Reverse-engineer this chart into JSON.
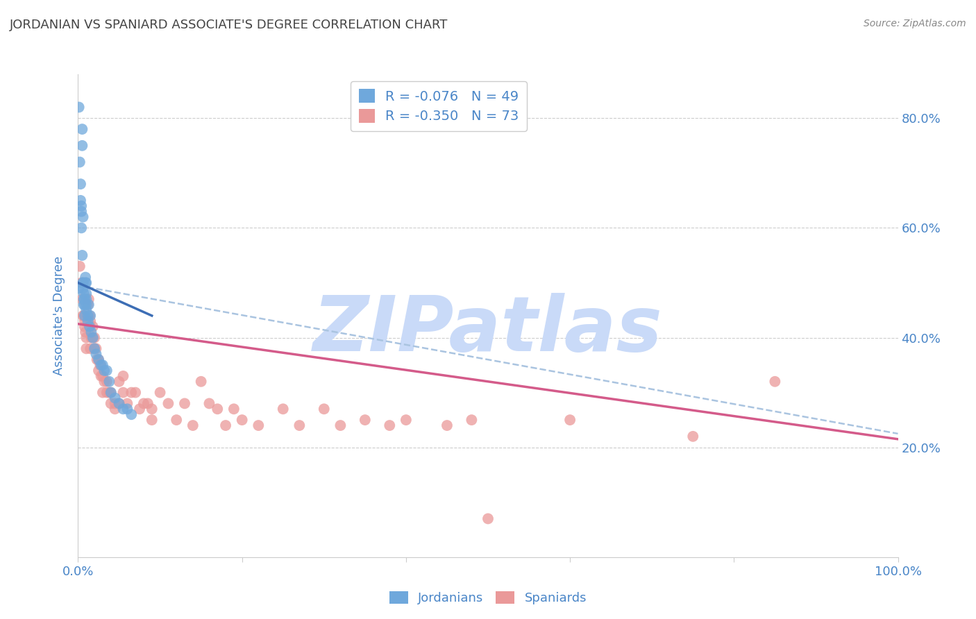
{
  "title": "JORDANIAN VS SPANIARD ASSOCIATE'S DEGREE CORRELATION CHART",
  "source": "Source: ZipAtlas.com",
  "ylabel": "Associate's Degree",
  "xlim": [
    0.0,
    1.0
  ],
  "ylim": [
    0.0,
    0.88
  ],
  "y_tick_right": [
    0.2,
    0.4,
    0.6,
    0.8
  ],
  "y_tick_right_labels": [
    "20.0%",
    "40.0%",
    "60.0%",
    "80.0%"
  ],
  "legend_blue_r": "-0.076",
  "legend_blue_n": "49",
  "legend_pink_r": "-0.350",
  "legend_pink_n": "73",
  "blue_color": "#6fa8dc",
  "pink_color": "#ea9999",
  "blue_line_color": "#3d6eb5",
  "pink_line_color": "#d45b8a",
  "dashed_line_color": "#aac4e0",
  "watermark_text": "ZIPatlas",
  "watermark_color": "#c9daf8",
  "title_color": "#444444",
  "tick_label_color": "#4a86c8",
  "source_color": "#888888",
  "jordanians_x": [
    0.001,
    0.001,
    0.002,
    0.003,
    0.003,
    0.004,
    0.004,
    0.004,
    0.005,
    0.005,
    0.005,
    0.006,
    0.006,
    0.006,
    0.006,
    0.007,
    0.007,
    0.007,
    0.008,
    0.008,
    0.008,
    0.009,
    0.009,
    0.01,
    0.01,
    0.01,
    0.01,
    0.01,
    0.012,
    0.012,
    0.013,
    0.014,
    0.015,
    0.016,
    0.018,
    0.02,
    0.022,
    0.025,
    0.028,
    0.03,
    0.032,
    0.035,
    0.038,
    0.04,
    0.045,
    0.05,
    0.055,
    0.06,
    0.065
  ],
  "jordanians_y": [
    0.82,
    0.49,
    0.72,
    0.68,
    0.65,
    0.64,
    0.63,
    0.6,
    0.78,
    0.75,
    0.55,
    0.62,
    0.5,
    0.5,
    0.49,
    0.48,
    0.47,
    0.46,
    0.47,
    0.46,
    0.44,
    0.51,
    0.5,
    0.5,
    0.48,
    0.47,
    0.46,
    0.45,
    0.44,
    0.43,
    0.46,
    0.42,
    0.44,
    0.41,
    0.4,
    0.38,
    0.37,
    0.36,
    0.35,
    0.35,
    0.34,
    0.34,
    0.32,
    0.3,
    0.29,
    0.28,
    0.27,
    0.27,
    0.26
  ],
  "spaniards_x": [
    0.002,
    0.004,
    0.005,
    0.006,
    0.007,
    0.008,
    0.008,
    0.009,
    0.01,
    0.01,
    0.012,
    0.013,
    0.014,
    0.015,
    0.015,
    0.016,
    0.018,
    0.018,
    0.02,
    0.02,
    0.022,
    0.023,
    0.025,
    0.025,
    0.027,
    0.028,
    0.03,
    0.03,
    0.032,
    0.035,
    0.035,
    0.038,
    0.04,
    0.04,
    0.045,
    0.045,
    0.05,
    0.05,
    0.055,
    0.055,
    0.06,
    0.065,
    0.07,
    0.075,
    0.08,
    0.085,
    0.09,
    0.09,
    0.1,
    0.11,
    0.12,
    0.13,
    0.14,
    0.15,
    0.16,
    0.17,
    0.18,
    0.19,
    0.2,
    0.22,
    0.25,
    0.27,
    0.3,
    0.32,
    0.35,
    0.38,
    0.4,
    0.45,
    0.48,
    0.5,
    0.6,
    0.75,
    0.85
  ],
  "spaniards_y": [
    0.53,
    0.5,
    0.47,
    0.44,
    0.44,
    0.43,
    0.42,
    0.41,
    0.4,
    0.38,
    0.46,
    0.47,
    0.44,
    0.43,
    0.38,
    0.4,
    0.42,
    0.4,
    0.4,
    0.38,
    0.38,
    0.36,
    0.36,
    0.34,
    0.35,
    0.33,
    0.33,
    0.3,
    0.32,
    0.32,
    0.3,
    0.3,
    0.3,
    0.28,
    0.28,
    0.27,
    0.32,
    0.28,
    0.33,
    0.3,
    0.28,
    0.3,
    0.3,
    0.27,
    0.28,
    0.28,
    0.27,
    0.25,
    0.3,
    0.28,
    0.25,
    0.28,
    0.24,
    0.32,
    0.28,
    0.27,
    0.24,
    0.27,
    0.25,
    0.24,
    0.27,
    0.24,
    0.27,
    0.24,
    0.25,
    0.24,
    0.25,
    0.24,
    0.25,
    0.07,
    0.25,
    0.22,
    0.32
  ],
  "blue_line_x0": 0.0,
  "blue_line_x1": 0.09,
  "blue_line_y0": 0.5,
  "blue_line_y1": 0.44,
  "pink_line_x0": 0.0,
  "pink_line_x1": 1.0,
  "pink_line_y0": 0.425,
  "pink_line_y1": 0.215,
  "dashed_line_x0": 0.0,
  "dashed_line_x1": 1.0,
  "dashed_line_y0": 0.495,
  "dashed_line_y1": 0.225
}
